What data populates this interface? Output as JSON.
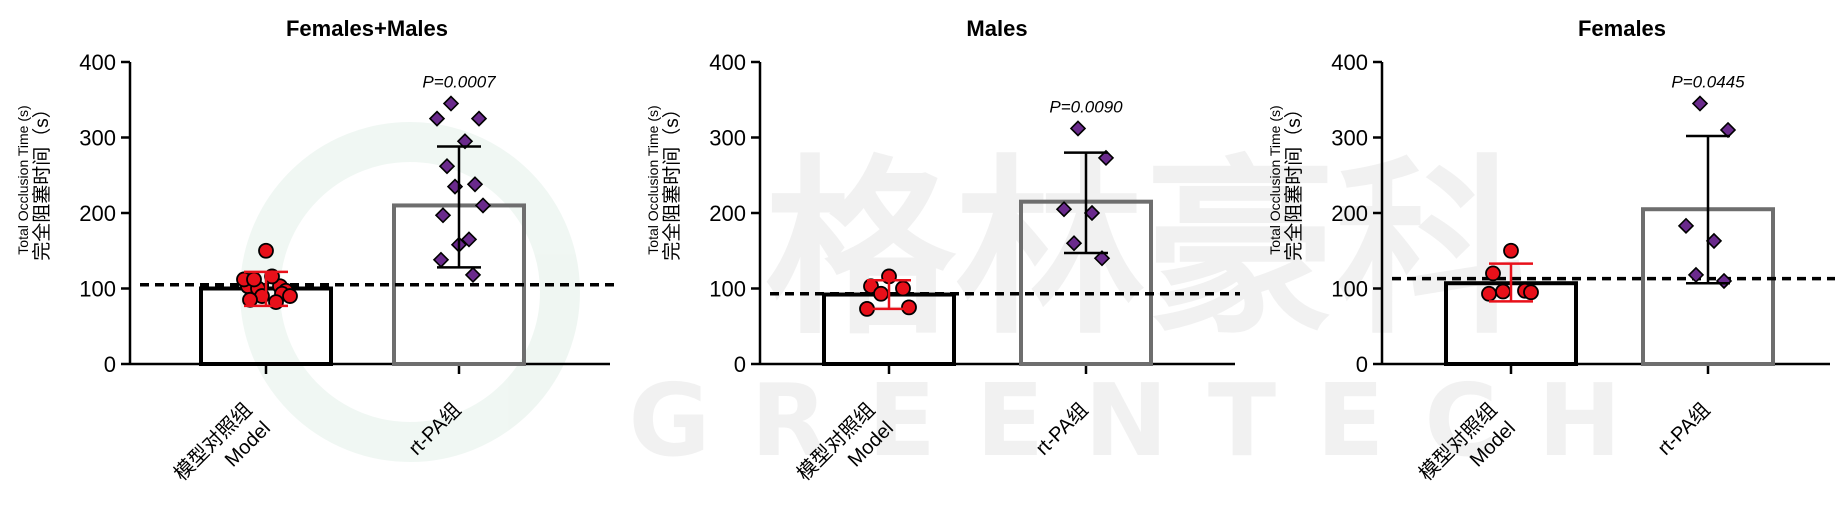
{
  "watermark": {
    "cn": "格林豪科",
    "en": "GREENTECH"
  },
  "y_axis_label": {
    "en": "Total Occlusion Time (s)",
    "cn": "完全阻塞时间（s）"
  },
  "x_categories": [
    {
      "cn": "模型对照组",
      "en": "Model"
    },
    {
      "cn": "rt-PA组",
      "en": ""
    }
  ],
  "chart_data": [
    {
      "type": "bar",
      "title": "Females+Males",
      "categories": [
        "模型对照组 Model",
        "rt-PA组"
      ],
      "ylim": [
        0,
        400
      ],
      "yticks": [
        0,
        100,
        200,
        300,
        400
      ],
      "bar_means": [
        100,
        210
      ],
      "error_low": [
        77,
        128
      ],
      "error_high": [
        122,
        288
      ],
      "reference_line": 105,
      "p_value": "P=0.0007",
      "points": [
        [
          150,
          103,
          103,
          100,
          97,
          112,
          116,
          112,
          93,
          90,
          90,
          85,
          82
        ],
        [
          345,
          325,
          325,
          295,
          262,
          238,
          235,
          210,
          197,
          165,
          158,
          138,
          118
        ]
      ]
    },
    {
      "type": "bar",
      "title": "Males",
      "categories": [
        "模型对照组 Model",
        "rt-PA组"
      ],
      "ylim": [
        0,
        400
      ],
      "yticks": [
        0,
        100,
        200,
        300,
        400
      ],
      "bar_means": [
        92,
        215
      ],
      "error_low": [
        73,
        147
      ],
      "error_high": [
        111,
        280
      ],
      "reference_line": 93,
      "p_value": "P=0.0090",
      "points": [
        [
          116,
          103,
          100,
          93,
          75,
          73
        ],
        [
          312,
          273,
          205,
          200,
          160,
          140
        ]
      ]
    },
    {
      "type": "bar",
      "title": "Females",
      "categories": [
        "模型对照组 Model",
        "rt-PA组"
      ],
      "ylim": [
        0,
        400
      ],
      "yticks": [
        0,
        100,
        200,
        300,
        400
      ],
      "bar_means": [
        107,
        205
      ],
      "error_low": [
        83,
        107
      ],
      "error_high": [
        133,
        302
      ],
      "reference_line": 113,
      "p_value": "P=0.0445",
      "points": [
        [
          150,
          120,
          97,
          96,
          95,
          93
        ],
        [
          345,
          310,
          183,
          163,
          118,
          110
        ]
      ]
    }
  ]
}
